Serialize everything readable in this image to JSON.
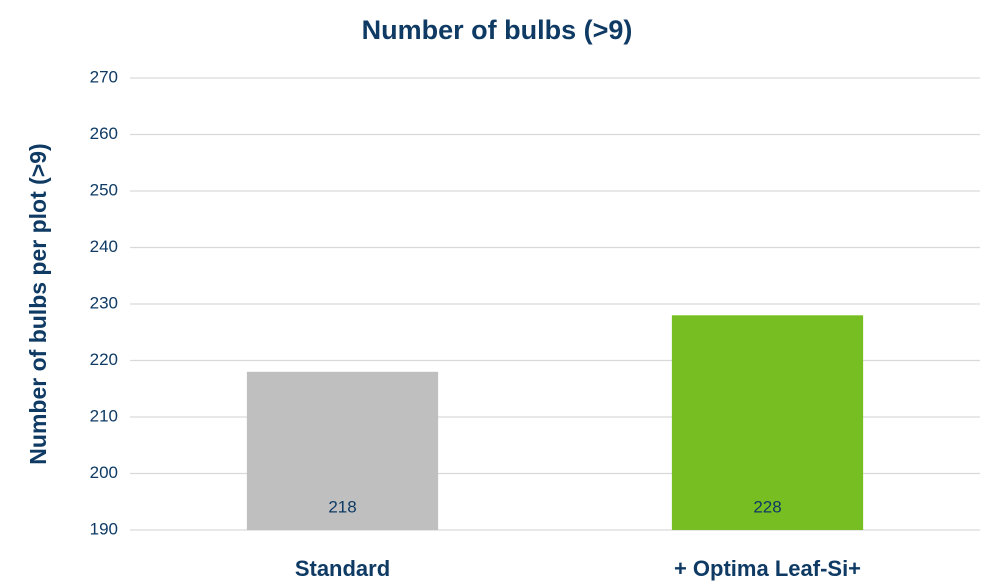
{
  "chart_data": {
    "type": "bar",
    "title": "Number of bulbs (>9)",
    "y_label": "Number of bulbs per plot (>9)",
    "categories": [
      "Standard",
      "+ Optima Leaf-Si+"
    ],
    "values": [
      218,
      228
    ],
    "colors": [
      "#bfbfbf",
      "#77be22"
    ],
    "ylim": [
      190,
      270
    ],
    "yticks": [
      190,
      200,
      210,
      220,
      230,
      240,
      250,
      260,
      270
    ],
    "grid": true
  }
}
